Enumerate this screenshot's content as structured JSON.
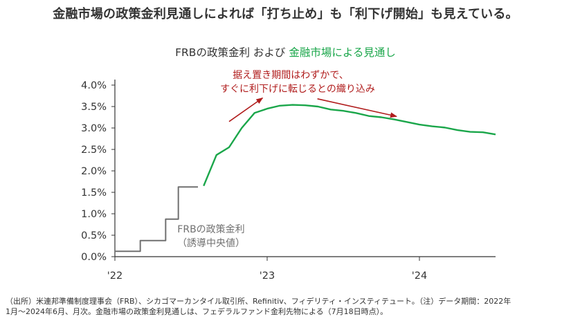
{
  "headline": "金融市場の政策金利見通しによれば「打ち止め」も「利下げ開始」も見えている。",
  "subtitle": {
    "part1": "FRBの政策金利 および ",
    "part2": "金融市場による見通し"
  },
  "annotation": {
    "line1": "据え置き期間はわずかで、",
    "line2": "すぐに利下げに転じるとの織り込み"
  },
  "frb_label": {
    "line1": "FRBの政策金利",
    "line2": "（誘導中央値）"
  },
  "source": {
    "line1": "（出所）米連邦準備制度理事会（FRB）、シカゴマーカンタイル取引所、Refinitiv、フィデリティ・インスティテュート。（注）データ期間：2022年",
    "line2": "1月～2024年6月、月次。金融市場の政策金利見通しは、フェデラルファンド金利先物による（7月18日時点）。"
  },
  "colors": {
    "frb": "#707070",
    "market": "#1aa64a",
    "annotation": "#b01c1c",
    "axis": "#333333"
  },
  "chart_data": {
    "type": "line",
    "y_ticks": [
      "0.0%",
      "0.5%",
      "1.0%",
      "1.5%",
      "2.0%",
      "2.5%",
      "3.0%",
      "3.5%",
      "4.0%"
    ],
    "x_ticks": [
      {
        "label": "'22",
        "x": 2022.0
      },
      {
        "label": "'23",
        "x": 2023.0
      },
      {
        "label": "'24",
        "x": 2024.0
      }
    ],
    "ylim": [
      0,
      4.0
    ],
    "xlim": [
      2022.0,
      2024.5
    ],
    "grid": false,
    "series": [
      {
        "name": "FRBの政策金利",
        "style": "step",
        "color": "#707070",
        "x": [
          2022.0,
          2022.1667,
          2022.3333,
          2022.4167,
          2022.5
        ],
        "y": [
          0.125,
          0.375,
          0.875,
          1.625,
          1.625
        ]
      },
      {
        "name": "金融市場による見通し",
        "style": "line",
        "color": "#1aa64a",
        "x": [
          2022.583,
          2022.667,
          2022.75,
          2022.833,
          2022.917,
          2023.0,
          2023.083,
          2023.167,
          2023.25,
          2023.333,
          2023.417,
          2023.5,
          2023.583,
          2023.667,
          2023.75,
          2023.833,
          2023.917,
          2024.0,
          2024.083,
          2024.167,
          2024.25,
          2024.333,
          2024.417,
          2024.5
        ],
        "y": [
          1.65,
          2.37,
          2.55,
          3.0,
          3.35,
          3.45,
          3.52,
          3.54,
          3.53,
          3.5,
          3.43,
          3.4,
          3.35,
          3.28,
          3.25,
          3.2,
          3.14,
          3.08,
          3.04,
          3.01,
          2.95,
          2.91,
          2.9,
          2.85
        ]
      }
    ],
    "arrows": [
      {
        "from": [
          2022.75,
          3.15
        ],
        "to": [
          2022.97,
          3.7
        ]
      },
      {
        "from": [
          2023.33,
          3.68
        ],
        "to": [
          2023.85,
          3.27
        ]
      }
    ]
  }
}
